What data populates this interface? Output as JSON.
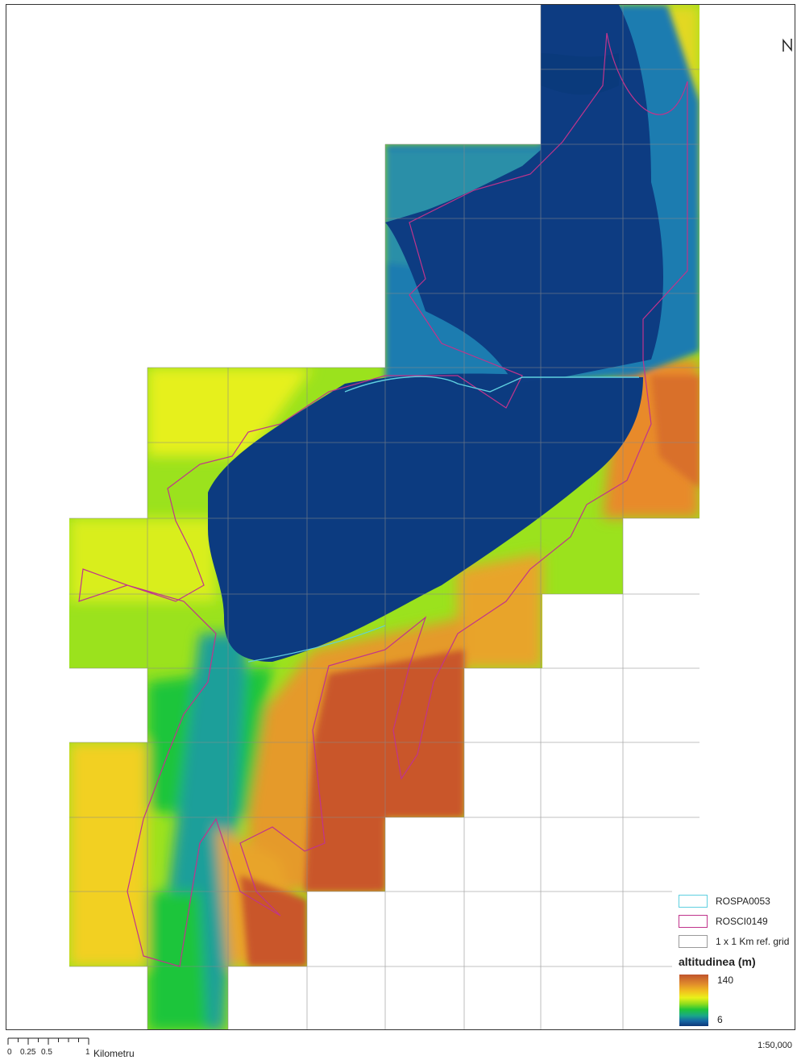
{
  "legend": {
    "items": [
      {
        "label": "ROSPA0053",
        "color": "#5fd0e0"
      },
      {
        "label": "ROSCI0149",
        "color": "#c0348c"
      },
      {
        "label": "1 x 1 Km ref. grid",
        "color": "#9a9a9a"
      }
    ],
    "ramp_title": "altitudinea (m)",
    "ramp_max": "140",
    "ramp_min": "6"
  },
  "scalebar": {
    "ticks": [
      "0",
      "0.25",
      "0.5",
      "1"
    ],
    "unit": "Kilometru"
  },
  "scale_ratio": "1:50,000",
  "colors": {
    "low": "#0e3778",
    "mid": "#1fc53a",
    "high": "#e9f11a",
    "top": "#c0542c"
  }
}
